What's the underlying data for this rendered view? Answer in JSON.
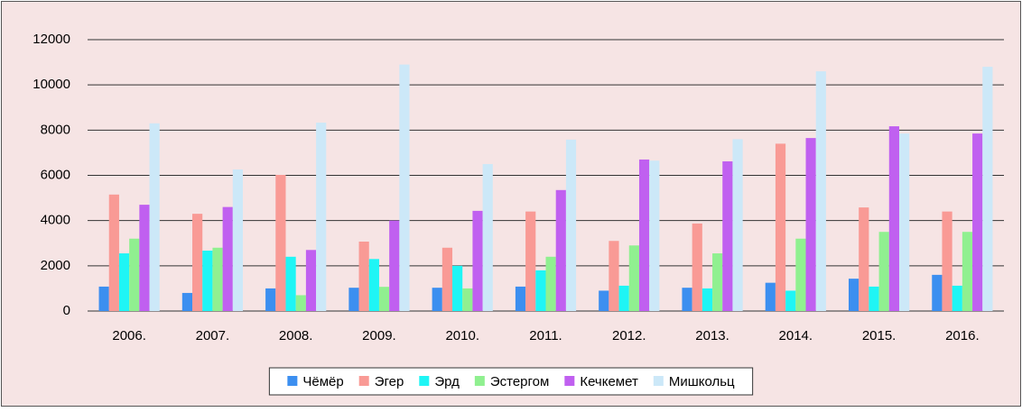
{
  "chart_data": {
    "type": "bar",
    "categories": [
      "2006.",
      "2007.",
      "2008.",
      "2009.",
      "2010.",
      "2011.",
      "2012.",
      "2013.",
      "2014.",
      "2015.",
      "2016."
    ],
    "series": [
      {
        "name": "Чёмёр",
        "color": "#3c8ff0",
        "values": [
          1080,
          800,
          1000,
          1030,
          1030,
          1080,
          900,
          1030,
          1250,
          1430,
          1600
        ]
      },
      {
        "name": "Эгер",
        "color": "#f99a95",
        "values": [
          5150,
          4300,
          6020,
          3070,
          2800,
          4400,
          3100,
          3870,
          7400,
          4580,
          4400
        ]
      },
      {
        "name": "Эрд",
        "color": "#1ff5f5",
        "values": [
          2550,
          2670,
          2400,
          2300,
          2000,
          1800,
          1120,
          1000,
          900,
          1080,
          1120
        ]
      },
      {
        "name": "Эстергом",
        "color": "#90f090",
        "values": [
          3200,
          2800,
          700,
          1070,
          1000,
          2400,
          2900,
          2550,
          3200,
          3500,
          3500
        ]
      },
      {
        "name": "Кечкемет",
        "color": "#c060f0",
        "values": [
          4700,
          4600,
          2700,
          4000,
          4430,
          5350,
          6700,
          6620,
          7650,
          8170,
          7850
        ]
      },
      {
        "name": "Мишкольц",
        "color": "#cce8f8",
        "values": [
          8300,
          6260,
          8330,
          10900,
          6500,
          7580,
          6650,
          7600,
          10600,
          7850,
          10800
        ]
      }
    ],
    "ylim": [
      0,
      12000
    ],
    "yticks": [
      0,
      2000,
      4000,
      6000,
      8000,
      10000,
      12000
    ],
    "grid": true,
    "legend": "bottom"
  }
}
